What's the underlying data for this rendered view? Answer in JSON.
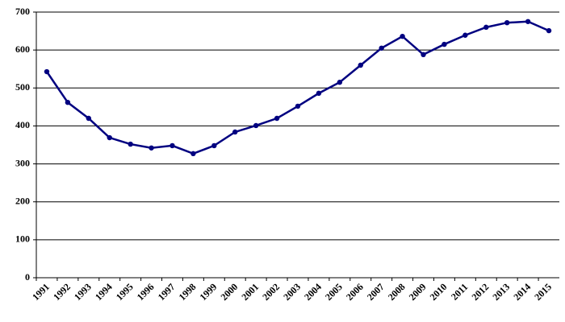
{
  "chart_data": {
    "type": "line",
    "categories": [
      "1991",
      "1992",
      "1993",
      "1994",
      "1995",
      "1996",
      "1997",
      "1998",
      "1999",
      "2000",
      "2001",
      "2002",
      "2003",
      "2004",
      "2005",
      "2006",
      "2007",
      "2008",
      "2009",
      "2010",
      "2011",
      "2012",
      "2013",
      "2014",
      "2015"
    ],
    "values": [
      543,
      462,
      420,
      369,
      352,
      342,
      348,
      327,
      348,
      384,
      401,
      420,
      452,
      486,
      515,
      560,
      605,
      636,
      588,
      615,
      639,
      660,
      672,
      675,
      651
    ],
    "color": "#000080",
    "ylim": [
      0,
      700
    ],
    "yticks": [
      0,
      100,
      200,
      300,
      400,
      500,
      600,
      700
    ],
    "grid": true
  }
}
